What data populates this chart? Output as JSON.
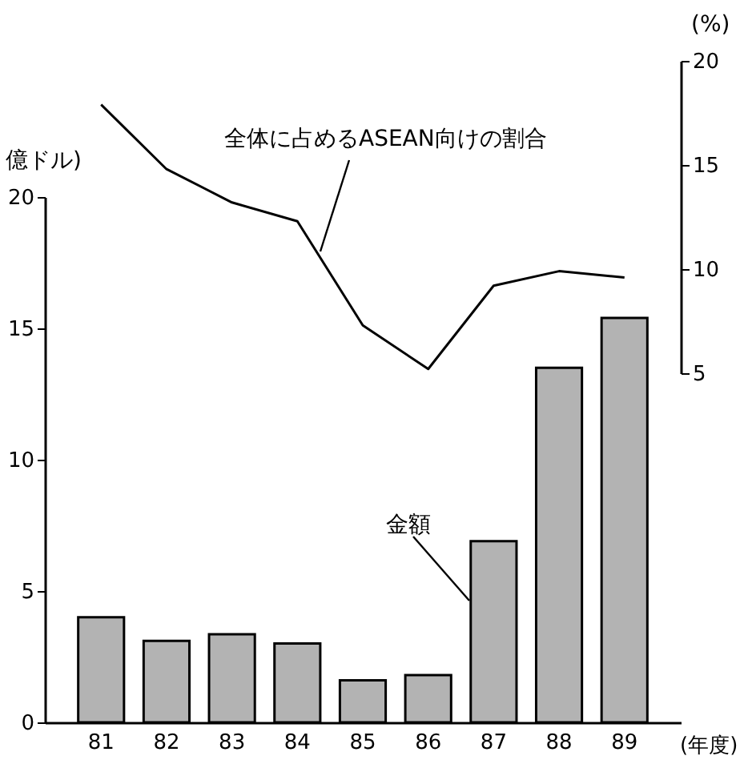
{
  "chart_data": {
    "type": "bar",
    "categories": [
      "81",
      "82",
      "83",
      "84",
      "85",
      "86",
      "87",
      "88",
      "89"
    ],
    "xlabel": "(年度)",
    "ylabel": "億ドル)",
    "y2label": "(%)",
    "ylim": [
      0,
      20
    ],
    "yticks": [
      0,
      5,
      10,
      15,
      20
    ],
    "y2lim": [
      5,
      20
    ],
    "y2ticks": [
      5,
      10,
      15,
      20
    ],
    "grid": false,
    "marker": "none",
    "line_style": "solid",
    "series": [
      {
        "name": "金額",
        "color": "#b3b3b3",
        "values": [
          4.0,
          3.1,
          3.35,
          3.0,
          1.6,
          1.8,
          6.9,
          13.5,
          15.4
        ]
      },
      {
        "type": "line",
        "name": "全体に占めるASEAN向けの割合",
        "axis": "y2",
        "color": "#000000",
        "values": [
          17.9,
          14.8,
          13.2,
          12.3,
          7.3,
          5.2,
          9.2,
          9.9,
          9.6
        ]
      }
    ]
  }
}
